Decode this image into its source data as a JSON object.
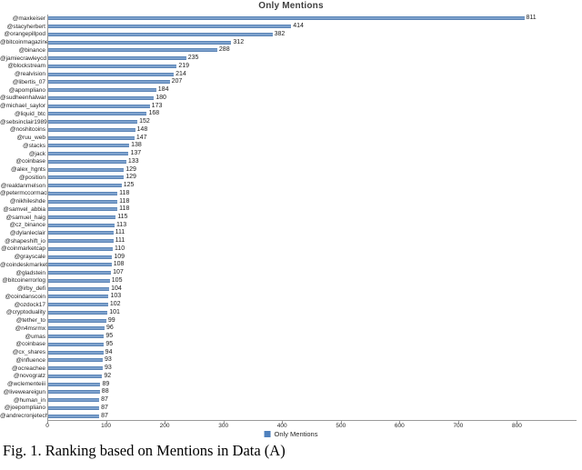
{
  "figure": {
    "caption": "Fig. 1. Ranking based on Mentions in Data (A)"
  },
  "chart_data": {
    "type": "bar",
    "orientation": "horizontal",
    "title": "Only Mentions",
    "legend_label": "Only Mentions",
    "legend_position": "bottom",
    "bar_color": "#4f81bd",
    "axis": {
      "xlim": [
        0,
        900
      ],
      "x_ticks": [
        0,
        100,
        200,
        300,
        400,
        500,
        600,
        700,
        800
      ],
      "gridlines": false
    },
    "categories": [
      "@maxkeiser",
      "@stacyherbert",
      "@orangepillpod",
      "@bitcoinmagazine",
      "@binance",
      "@jamiecrawleycd",
      "@blockstream",
      "@realvision",
      "@libertis_07",
      "@apompliano",
      "@sudheenhalwar",
      "@michael_saylor",
      "@liquid_btc",
      "@sebsinclair1989",
      "@noshitcoins",
      "@ruu_web",
      "@stacks",
      "@jack",
      "@coinbase",
      "@alex_hgnts",
      "@position",
      "@realdanmelson",
      "@petermccormack",
      "@nikhileshde",
      "@samvel_abbia",
      "@samuel_haig",
      "@cz_binance",
      "@dylanleclair",
      "@shapeshift_io",
      "@coinmarketcap",
      "@grayscale",
      "@coindeskmarkets",
      "@gladstein",
      "@bitcoinerrorlog",
      "@irby_defi",
      "@coindanscoin",
      "@ozdock17",
      "@cryptoduality",
      "@tether_to",
      "@n4msrmx",
      "@umas",
      "@coinbase",
      "@cx_shares",
      "@influence",
      "@ocreachee",
      "@novogratz",
      "@wclementeiii",
      "@liveweareigun",
      "@human_in",
      "@joepompliano",
      "@andrecronjetech"
    ],
    "values": [
      811,
      414,
      382,
      312,
      288,
      235,
      219,
      214,
      207,
      184,
      180,
      173,
      168,
      152,
      148,
      147,
      138,
      137,
      133,
      129,
      129,
      125,
      118,
      118,
      118,
      115,
      113,
      111,
      111,
      110,
      109,
      108,
      107,
      105,
      104,
      103,
      102,
      101,
      99,
      96,
      95,
      95,
      94,
      93,
      93,
      92,
      89,
      88,
      87,
      87,
      87
    ]
  }
}
